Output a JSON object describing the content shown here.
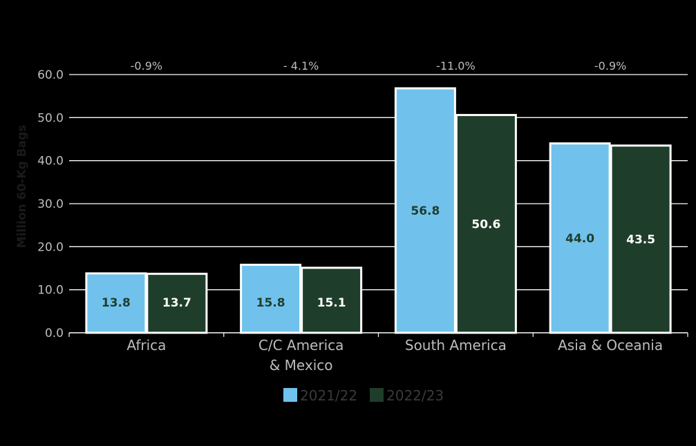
{
  "chart_data": {
    "type": "bar",
    "title": "",
    "xlabel": "",
    "ylabel": "Million 60-Kg Bags",
    "ylim": [
      0,
      60
    ],
    "yticks": [
      "0.0",
      "10.0",
      "20.0",
      "30.0",
      "40.0",
      "50.0",
      "60.0"
    ],
    "categories": [
      [
        "Africa"
      ],
      [
        "C/C America",
        "& Mexico"
      ],
      [
        "South America"
      ],
      [
        "Asia & Oceania"
      ]
    ],
    "changes": [
      "-0.9%",
      "- 4.1%",
      "-11.0%",
      "-0.9%"
    ],
    "series": [
      {
        "name": "2021/22",
        "values": [
          13.8,
          15.8,
          56.8,
          44.0
        ],
        "labels": [
          "13.8",
          "15.8",
          "56.8",
          "44.0"
        ]
      },
      {
        "name": "2022/23",
        "values": [
          13.7,
          15.1,
          50.6,
          43.5
        ],
        "labels": [
          "13.7",
          "15.1",
          "50.6",
          "43.5"
        ]
      }
    ],
    "grid": true,
    "legend_position": "bottom"
  },
  "colors": {
    "series": [
      "#70c2ec",
      "#1f3d2b"
    ],
    "value_text": [
      "#1f3d2b",
      "#ffffff"
    ],
    "gridline": "#ffffff",
    "bar_border": "#ffffff"
  }
}
